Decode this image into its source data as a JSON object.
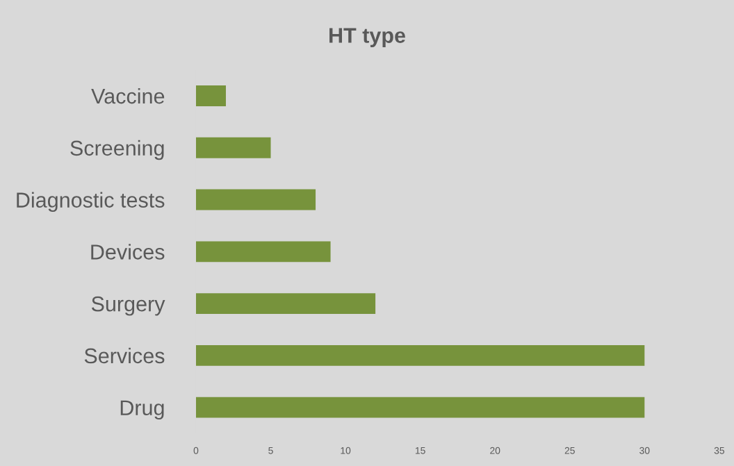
{
  "chart_data": {
    "type": "bar",
    "orientation": "horizontal",
    "title": "HT type",
    "categories": [
      "Vaccine",
      "Screening",
      "Diagnostic tests",
      "Devices",
      "Surgery",
      "Services",
      "Drug"
    ],
    "values": [
      2,
      5,
      8,
      9,
      12,
      30,
      30
    ],
    "color": "#77933c",
    "xlim": [
      0,
      35
    ],
    "xticks": [
      0,
      5,
      10,
      15,
      20,
      25,
      30,
      35
    ],
    "grid": false
  }
}
